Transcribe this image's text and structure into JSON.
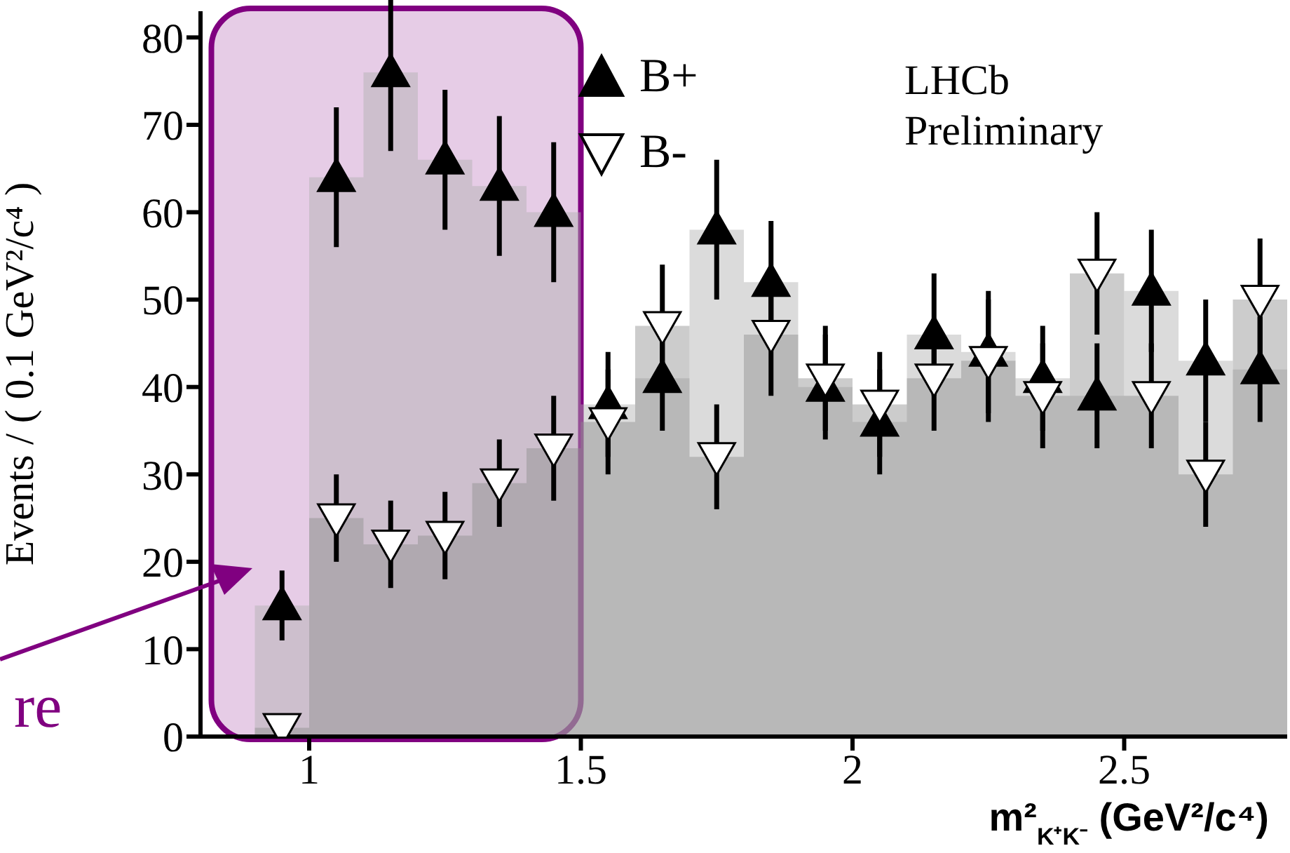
{
  "chart_data": {
    "type": "histogram",
    "xlabel": "m²$_{K⁺K⁻}$ (GeV²/c⁴)",
    "ylabel": "Events / ( 0.1 GeV²/c⁴ )",
    "bins": [
      0.9,
      1.0,
      1.1,
      1.2,
      1.3,
      1.4,
      1.5,
      1.6,
      1.7,
      1.8,
      1.9,
      2.0,
      2.1,
      2.2,
      2.3,
      2.4,
      2.5,
      2.6,
      2.7,
      2.8
    ],
    "series": [
      {
        "color": "#b0b0b0",
        "values": [
          15,
          64,
          76,
          66,
          63,
          60,
          38,
          41,
          58,
          52,
          40,
          36,
          46,
          44,
          41,
          39,
          51,
          43,
          42
        ]
      },
      {
        "color": "#8f8f8f",
        "values": [
          1,
          25,
          22,
          23,
          29,
          33,
          36,
          47,
          32,
          46,
          41,
          38,
          41,
          43,
          39,
          53,
          39,
          30,
          50
        ]
      },
      {
        "type": "scatter",
        "name": "B+",
        "color": "#000000",
        "marker": "triangle",
        "x": [
          0.95,
          1.05,
          1.15,
          1.25,
          1.35,
          1.45,
          1.55,
          1.65,
          1.75,
          1.85,
          1.95,
          2.05,
          2.15,
          2.25,
          2.35,
          2.45,
          2.55,
          2.65,
          2.75
        ],
        "values": [
          15,
          64,
          76,
          66,
          63,
          60,
          38,
          41,
          58,
          52,
          40,
          36,
          46,
          44,
          41,
          39,
          51,
          43,
          42
        ],
        "errors": [
          4,
          8,
          9,
          8,
          8,
          8,
          6,
          6,
          8,
          7,
          6,
          6,
          7,
          7,
          6,
          6,
          7,
          7,
          6
        ]
      },
      {
        "type": "scatter",
        "name": "B-",
        "color": "#ffffff",
        "marker": "triangle_down",
        "x": [
          0.95,
          1.05,
          1.15,
          1.25,
          1.35,
          1.45,
          1.55,
          1.65,
          1.75,
          1.85,
          1.95,
          2.05,
          2.15,
          2.25,
          2.35,
          2.45,
          2.55,
          2.65,
          2.75
        ],
        "values": [
          1,
          25,
          22,
          23,
          29,
          33,
          36,
          47,
          32,
          46,
          41,
          38,
          41,
          43,
          39,
          53,
          39,
          30,
          50
        ],
        "errors": [
          1,
          5,
          5,
          5,
          5,
          6,
          6,
          7,
          6,
          7,
          6,
          6,
          6,
          7,
          6,
          7,
          6,
          6,
          7
        ]
      }
    ],
    "xlim": [
      0.8,
      2.8
    ],
    "ylim": [
      0,
      83
    ],
    "xticks": [
      1,
      1.5,
      2,
      2.5
    ],
    "yticks": [
      0,
      10,
      20,
      30,
      40,
      50,
      60,
      70,
      80
    ],
    "bands": [
      {
        "axis": "x",
        "from": 0.82,
        "to": 1.5,
        "color": "#800080"
      }
    ],
    "annotations": [
      "LHCb Preliminary",
      "re"
    ],
    "legend": "top",
    "grid": false
  }
}
